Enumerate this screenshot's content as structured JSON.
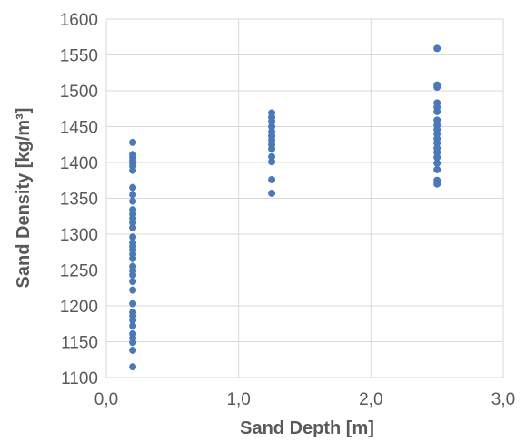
{
  "chart_data": {
    "type": "scatter",
    "xlabel": "Sand Depth [m]",
    "ylabel": "Sand Density [kg/m³]",
    "xlim": [
      0,
      3
    ],
    "ylim": [
      1100,
      1600
    ],
    "x_ticks": [
      "0,0",
      "1,0",
      "2,0",
      "3,0"
    ],
    "y_ticks": [
      "1100",
      "1150",
      "1200",
      "1250",
      "1300",
      "1350",
      "1400",
      "1450",
      "1500",
      "1550",
      "1600"
    ],
    "grid": true,
    "marker_color": "#4a78b8",
    "series": [
      {
        "values": [
          [
            0.2,
            1428
          ],
          [
            0.2,
            1411
          ],
          [
            0.2,
            1407
          ],
          [
            0.2,
            1403
          ],
          [
            0.2,
            1399
          ],
          [
            0.2,
            1395
          ],
          [
            0.2,
            1389
          ],
          [
            0.2,
            1365
          ],
          [
            0.2,
            1355
          ],
          [
            0.2,
            1346
          ],
          [
            0.2,
            1334
          ],
          [
            0.2,
            1328
          ],
          [
            0.2,
            1322
          ],
          [
            0.2,
            1316
          ],
          [
            0.2,
            1309
          ],
          [
            0.2,
            1296
          ],
          [
            0.2,
            1288
          ],
          [
            0.2,
            1283
          ],
          [
            0.2,
            1278
          ],
          [
            0.2,
            1272
          ],
          [
            0.2,
            1266
          ],
          [
            0.2,
            1255
          ],
          [
            0.2,
            1249
          ],
          [
            0.2,
            1243
          ],
          [
            0.2,
            1234
          ],
          [
            0.2,
            1222
          ],
          [
            0.2,
            1203
          ],
          [
            0.2,
            1191
          ],
          [
            0.2,
            1186
          ],
          [
            0.2,
            1180
          ],
          [
            0.2,
            1172
          ],
          [
            0.2,
            1161
          ],
          [
            0.2,
            1155
          ],
          [
            0.2,
            1149
          ],
          [
            0.2,
            1138
          ],
          [
            0.2,
            1115
          ],
          [
            1.25,
            1469
          ],
          [
            1.25,
            1463
          ],
          [
            1.25,
            1457
          ],
          [
            1.25,
            1450
          ],
          [
            1.25,
            1443
          ],
          [
            1.25,
            1437
          ],
          [
            1.25,
            1431
          ],
          [
            1.25,
            1425
          ],
          [
            1.25,
            1419
          ],
          [
            1.25,
            1408
          ],
          [
            1.25,
            1401
          ],
          [
            1.25,
            1376
          ],
          [
            1.25,
            1357
          ],
          [
            2.5,
            1559
          ],
          [
            2.5,
            1508
          ],
          [
            2.5,
            1505
          ],
          [
            2.5,
            1483
          ],
          [
            2.5,
            1477
          ],
          [
            2.5,
            1471
          ],
          [
            2.5,
            1459
          ],
          [
            2.5,
            1452
          ],
          [
            2.5,
            1446
          ],
          [
            2.5,
            1440
          ],
          [
            2.5,
            1433
          ],
          [
            2.5,
            1427
          ],
          [
            2.5,
            1420
          ],
          [
            2.5,
            1414
          ],
          [
            2.5,
            1407
          ],
          [
            2.5,
            1399
          ],
          [
            2.5,
            1390
          ],
          [
            2.5,
            1375
          ],
          [
            2.5,
            1370
          ]
        ]
      }
    ]
  }
}
